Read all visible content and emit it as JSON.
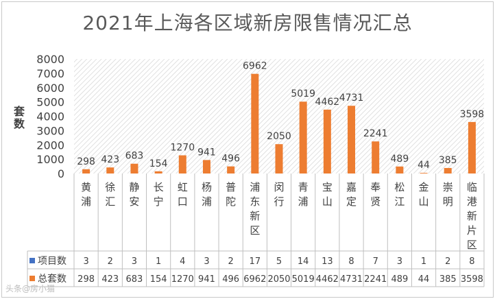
{
  "chart_data": {
    "type": "bar",
    "title": "2021年上海各区域新房限售情况汇总",
    "ylabel": "套数",
    "ylim": [
      0,
      8000
    ],
    "yticks": [
      0,
      1000,
      2000,
      3000,
      4000,
      5000,
      6000,
      7000,
      8000
    ],
    "grid": false,
    "plot_background": "hatched",
    "categories": [
      "黄浦",
      "徐汇",
      "静安",
      "长宁",
      "虹口",
      "杨浦",
      "普陀",
      "浦东新区",
      "闵行",
      "青浦",
      "宝山",
      "嘉定",
      "奉贤",
      "松江",
      "金山",
      "崇明",
      "临港新片区"
    ],
    "series": [
      {
        "name": "项目数",
        "color": "#4472c4",
        "values": [
          3,
          2,
          3,
          1,
          4,
          3,
          2,
          17,
          5,
          14,
          13,
          8,
          7,
          3,
          1,
          2,
          8
        ]
      },
      {
        "name": "总套数",
        "color": "#ed7d31",
        "values": [
          298,
          423,
          683,
          154,
          1270,
          941,
          496,
          6962,
          2050,
          5019,
          4462,
          4731,
          2241,
          489,
          44,
          385,
          3598
        ]
      }
    ],
    "legend": "data-table"
  },
  "watermark": "头条@房小猫"
}
